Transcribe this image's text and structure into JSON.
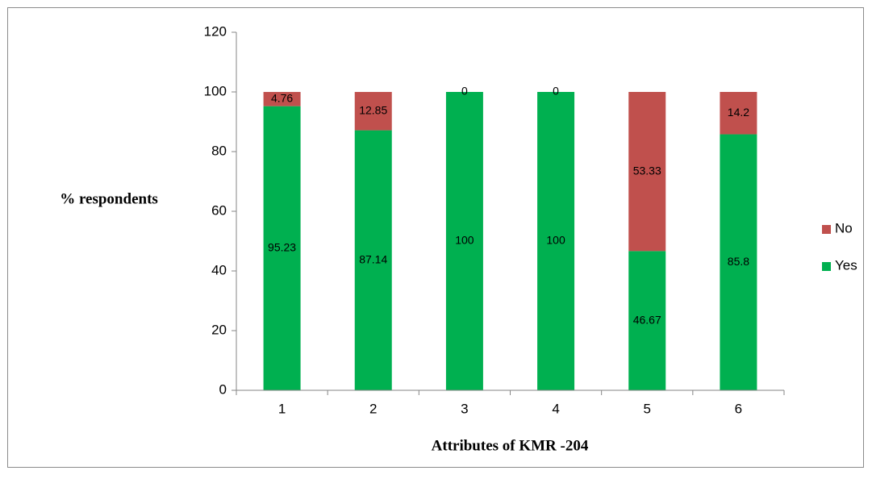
{
  "chart_data": {
    "type": "stacked_bar",
    "y_label": "% respondents",
    "x_label": "Attributes of KMR -204",
    "categories": [
      "1",
      "2",
      "3",
      "4",
      "5",
      "6"
    ],
    "series": [
      {
        "name": "Yes",
        "color": "#00b050",
        "values": [
          95.23,
          87.14,
          100,
          100,
          46.67,
          85.8
        ]
      },
      {
        "name": "No",
        "color": "#c0504d",
        "values": [
          4.76,
          12.85,
          0,
          0,
          53.33,
          14.2
        ]
      }
    ],
    "ylim": [
      0,
      120
    ],
    "yticks": [
      0,
      20,
      40,
      60,
      80,
      100,
      120
    ],
    "legend": "right"
  }
}
